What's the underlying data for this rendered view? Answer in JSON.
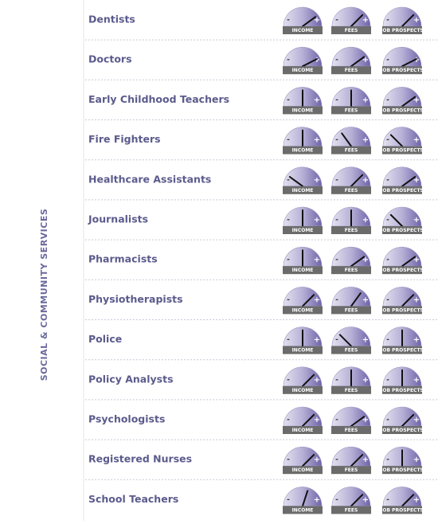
{
  "section": "SOCIAL & COMMUNITY SERVICES",
  "gauge_labels": [
    "INCOME",
    "FEES",
    "JOB PROSPECTS"
  ],
  "scale": {
    "low": "-",
    "high": "+"
  },
  "rows": [
    {
      "name": "Dentists",
      "values": [
        80,
        75,
        75
      ]
    },
    {
      "name": "Doctors",
      "values": [
        85,
        80,
        85
      ]
    },
    {
      "name": "Early Childhood Teachers",
      "values": [
        50,
        50,
        80
      ]
    },
    {
      "name": "Fire Fighters",
      "values": [
        50,
        30,
        25
      ]
    },
    {
      "name": "Healthcare Assistants",
      "values": [
        20,
        75,
        80
      ]
    },
    {
      "name": "Journalists",
      "values": [
        50,
        50,
        25
      ]
    },
    {
      "name": "Pharmacists",
      "values": [
        50,
        80,
        80
      ]
    },
    {
      "name": "Physiotherapists",
      "values": [
        75,
        70,
        75
      ]
    },
    {
      "name": "Police",
      "values": [
        50,
        25,
        50
      ]
    },
    {
      "name": "Policy Analysts",
      "values": [
        75,
        50,
        50
      ]
    },
    {
      "name": "Psychologists",
      "values": [
        75,
        80,
        75
      ]
    },
    {
      "name": "Registered Nurses",
      "values": [
        75,
        75,
        50
      ]
    },
    {
      "name": "School Teachers",
      "values": [
        60,
        75,
        75
      ]
    }
  ]
}
